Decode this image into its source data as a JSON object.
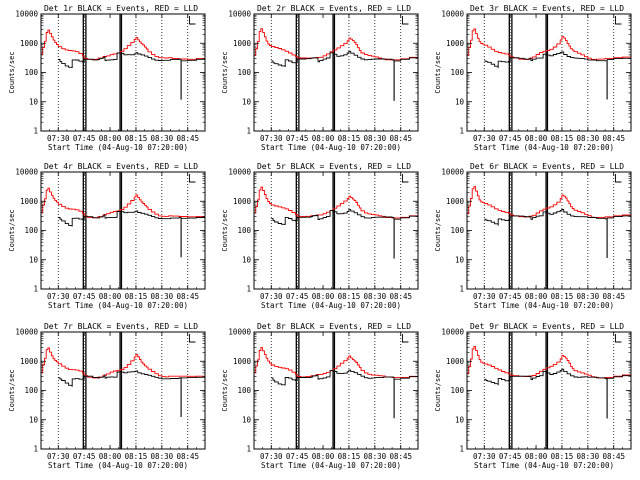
{
  "chart_data": [
    {
      "type": "line",
      "title": "Det 1r BLACK = Events, RED = LLD",
      "variant": 1
    },
    {
      "type": "line",
      "title": "Det 2r BLACK = Events, RED = LLD",
      "variant": 2
    },
    {
      "type": "line",
      "title": "Det 3r BLACK = Events, RED = LLD",
      "variant": 3
    },
    {
      "type": "line",
      "title": "Det 4r BLACK = Events, RED = LLD",
      "variant": 4
    },
    {
      "type": "line",
      "title": "Det 5r BLACK = Events, RED = LLD",
      "variant": 5
    },
    {
      "type": "line",
      "title": "Det 6r BLACK = Events, RED = LLD",
      "variant": 6
    },
    {
      "type": "line",
      "title": "Det 7r BLACK = Events, RED = LLD",
      "variant": 7
    },
    {
      "type": "line",
      "title": "Det 8r BLACK = Events, RED = LLD",
      "variant": 8
    },
    {
      "type": "line",
      "title": "Det 9r BLACK = Events, RED = LLD",
      "variant": 9
    }
  ],
  "shared": {
    "ylabel": "Counts/sec",
    "xlabel": "Start Time (04-Aug-10 07:20:00)",
    "yscale": "log",
    "ylim": [
      1,
      10000
    ],
    "xlim_min": [
      0,
      95
    ],
    "x_ticks": [
      {
        "label": "07:30",
        "t": 10
      },
      {
        "label": "07:45",
        "t": 25
      },
      {
        "label": "08:00",
        "t": 40
      },
      {
        "label": "08:15",
        "t": 55
      },
      {
        "label": "08:30",
        "t": 70
      },
      {
        "label": "08:45",
        "t": 85
      }
    ],
    "y_ticks": [
      {
        "label": "1",
        "v": 1
      },
      {
        "label": "10",
        "v": 10
      },
      {
        "label": "100",
        "v": 100
      },
      {
        "label": "1000",
        "v": 1000
      },
      {
        "label": "10000",
        "v": 10000
      }
    ],
    "dotted_lines_min": [
      10,
      25,
      55,
      70,
      85
    ],
    "thick_bars_min": [
      [
        24.5,
        26.0
      ],
      [
        45.8,
        46.6
      ]
    ],
    "colors": {
      "events": "#000000",
      "lld": "#ff0000"
    },
    "series": [
      {
        "name": "LLD",
        "points": [
          [
            0,
            400
          ],
          [
            1,
            700
          ],
          [
            2,
            1200
          ],
          [
            3,
            2500
          ],
          [
            4,
            3000
          ],
          [
            5,
            2200
          ],
          [
            6,
            1600
          ],
          [
            7,
            1200
          ],
          [
            8,
            1000
          ],
          [
            9,
            900
          ],
          [
            10,
            800
          ],
          [
            12,
            700
          ],
          [
            14,
            620
          ],
          [
            16,
            560
          ],
          [
            18,
            520
          ],
          [
            20,
            480
          ],
          [
            22,
            430
          ],
          [
            24,
            380
          ],
          [
            25,
            320
          ],
          [
            27,
            300
          ],
          [
            30,
            290
          ],
          [
            33,
            300
          ],
          [
            36,
            330
          ],
          [
            38,
            350
          ],
          [
            40,
            400
          ],
          [
            42,
            450
          ],
          [
            44,
            500
          ],
          [
            46,
            560
          ],
          [
            48,
            650
          ],
          [
            50,
            800
          ],
          [
            52,
            1000
          ],
          [
            54,
            1300
          ],
          [
            55,
            1600
          ],
          [
            56,
            1400
          ],
          [
            57,
            1200
          ],
          [
            58,
            1000
          ],
          [
            59,
            850
          ],
          [
            60,
            700
          ],
          [
            61,
            600
          ],
          [
            62,
            500
          ],
          [
            64,
            430
          ],
          [
            66,
            380
          ],
          [
            68,
            340
          ],
          [
            70,
            320
          ],
          [
            72,
            300
          ],
          [
            74,
            300
          ],
          [
            76,
            290
          ],
          [
            80,
            290
          ],
          [
            85,
            300
          ],
          [
            90,
            320
          ],
          [
            95,
            360
          ]
        ]
      },
      {
        "name": "Events",
        "points": [
          [
            10,
            260
          ],
          [
            11,
            230
          ],
          [
            12,
            210
          ],
          [
            14,
            180
          ],
          [
            16,
            160
          ],
          [
            18,
            150
          ],
          [
            18.1,
            260
          ],
          [
            20,
            250
          ],
          [
            22,
            230
          ],
          [
            24,
            230
          ],
          [
            25,
            300
          ],
          [
            30,
            290
          ],
          [
            33,
            290
          ],
          [
            34,
            300
          ],
          [
            36,
            310
          ],
          [
            37,
            330
          ],
          [
            37.1,
            250
          ],
          [
            38,
            270
          ],
          [
            40,
            290
          ],
          [
            42,
            300
          ],
          [
            44,
            320
          ],
          [
            44.1,
            450
          ],
          [
            46,
            420
          ],
          [
            48,
            380
          ],
          [
            50,
            400
          ],
          [
            52,
            420
          ],
          [
            54,
            460
          ],
          [
            55,
            500
          ],
          [
            56,
            430
          ],
          [
            58,
            380
          ],
          [
            60,
            340
          ],
          [
            62,
            310
          ],
          [
            64,
            290
          ],
          [
            66,
            280
          ],
          [
            68,
            275
          ],
          [
            70,
            270
          ],
          [
            75,
            270
          ],
          [
            80,
            270
          ],
          [
            81,
            260
          ],
          [
            81.1,
            12
          ],
          [
            81.2,
            260
          ],
          [
            85,
            280
          ],
          [
            90,
            300
          ],
          [
            95,
            330
          ]
        ]
      }
    ]
  }
}
